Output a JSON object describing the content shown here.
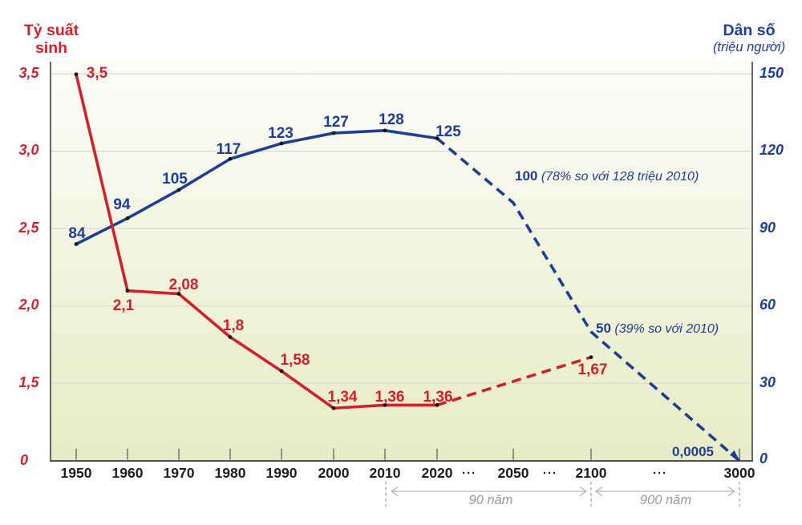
{
  "left_axis": {
    "title_line1": "Tỷ suất",
    "title_line2": "sinh",
    "ticks": [
      "3,5",
      "3,0",
      "2,5",
      "2,0",
      "1,5",
      "0"
    ]
  },
  "right_axis": {
    "title": "Dân số",
    "unit": "(triệu người)",
    "ticks": [
      "150",
      "120",
      "90",
      "60",
      "30",
      "0"
    ]
  },
  "x_axis": {
    "labels": [
      "1950",
      "1960",
      "1970",
      "1980",
      "1990",
      "2000",
      "2010",
      "2020",
      "2050",
      "2100",
      "3000"
    ],
    "ellipsis": "···"
  },
  "annotations": {
    "pop_2050_value": "100",
    "pop_2050_note": "(78% so với 128 triệu 2010)",
    "pop_2100_value": "50",
    "pop_2100_note": "(39% so với 2010)",
    "pop_3000_value": "0,0005",
    "span_90": "90 năm",
    "span_900": "900 năm"
  },
  "chart_data": {
    "type": "line",
    "categories": [
      "1950",
      "1960",
      "1970",
      "1980",
      "1990",
      "2000",
      "2010",
      "2020",
      "2050",
      "2100",
      "3000"
    ],
    "series": [
      {
        "name": "Tỷ suất sinh",
        "axis": "left",
        "color": "#d1202c",
        "values": [
          3.5,
          2.1,
          2.08,
          1.8,
          1.58,
          1.34,
          1.36,
          1.36,
          null,
          1.67,
          null
        ],
        "point_labels": [
          "3,5",
          "2,1",
          "2,08",
          "1,8",
          "1,58",
          "1,34",
          "1,36",
          "1,36",
          "",
          "1,67",
          ""
        ],
        "line_style": "solid 1950-2020, dashed projection 2020-2100"
      },
      {
        "name": "Dân số (triệu người)",
        "axis": "right",
        "color": "#1e3e94",
        "values": [
          84,
          94,
          105,
          117,
          123,
          127,
          128,
          125,
          100,
          50,
          0.0005
        ],
        "point_labels": [
          "84",
          "94",
          "105",
          "117",
          "123",
          "127",
          "128",
          "125",
          "",
          "",
          ""
        ],
        "line_style": "solid 1950-2020, dashed projection 2020-3000"
      }
    ],
    "left_ylabel": "Tỷ suất sinh",
    "right_ylabel": "Dân số (triệu người)",
    "left_ylim": [
      0,
      3.5
    ],
    "right_ylim": [
      0,
      150
    ],
    "left_ticks": [
      3.5,
      3.0,
      2.5,
      2.0,
      1.5,
      0
    ],
    "right_ticks": [
      150,
      120,
      90,
      60,
      30,
      0
    ],
    "grid": true,
    "notes": [
      "100 triệu năm 2050 = 78% so với 128 triệu 2010",
      "50 triệu năm 2100 = 39% so với 2010",
      "0,0005 triệu năm 3000",
      "90 năm: 2010 đến 2100",
      "900 năm: 2100 đến 3000"
    ]
  },
  "colors": {
    "red": "#d1202c",
    "blue": "#1e3e94",
    "grid": "#d8d8d0",
    "axis_border": "#55555a",
    "tick": "#6a6a6a",
    "muted_gray": "#9a9a9a",
    "year_text": "#1d1d1b",
    "dot": "#141414",
    "bg_top": "#fdfdf8",
    "bg_bottom": "#e7ecc5"
  }
}
